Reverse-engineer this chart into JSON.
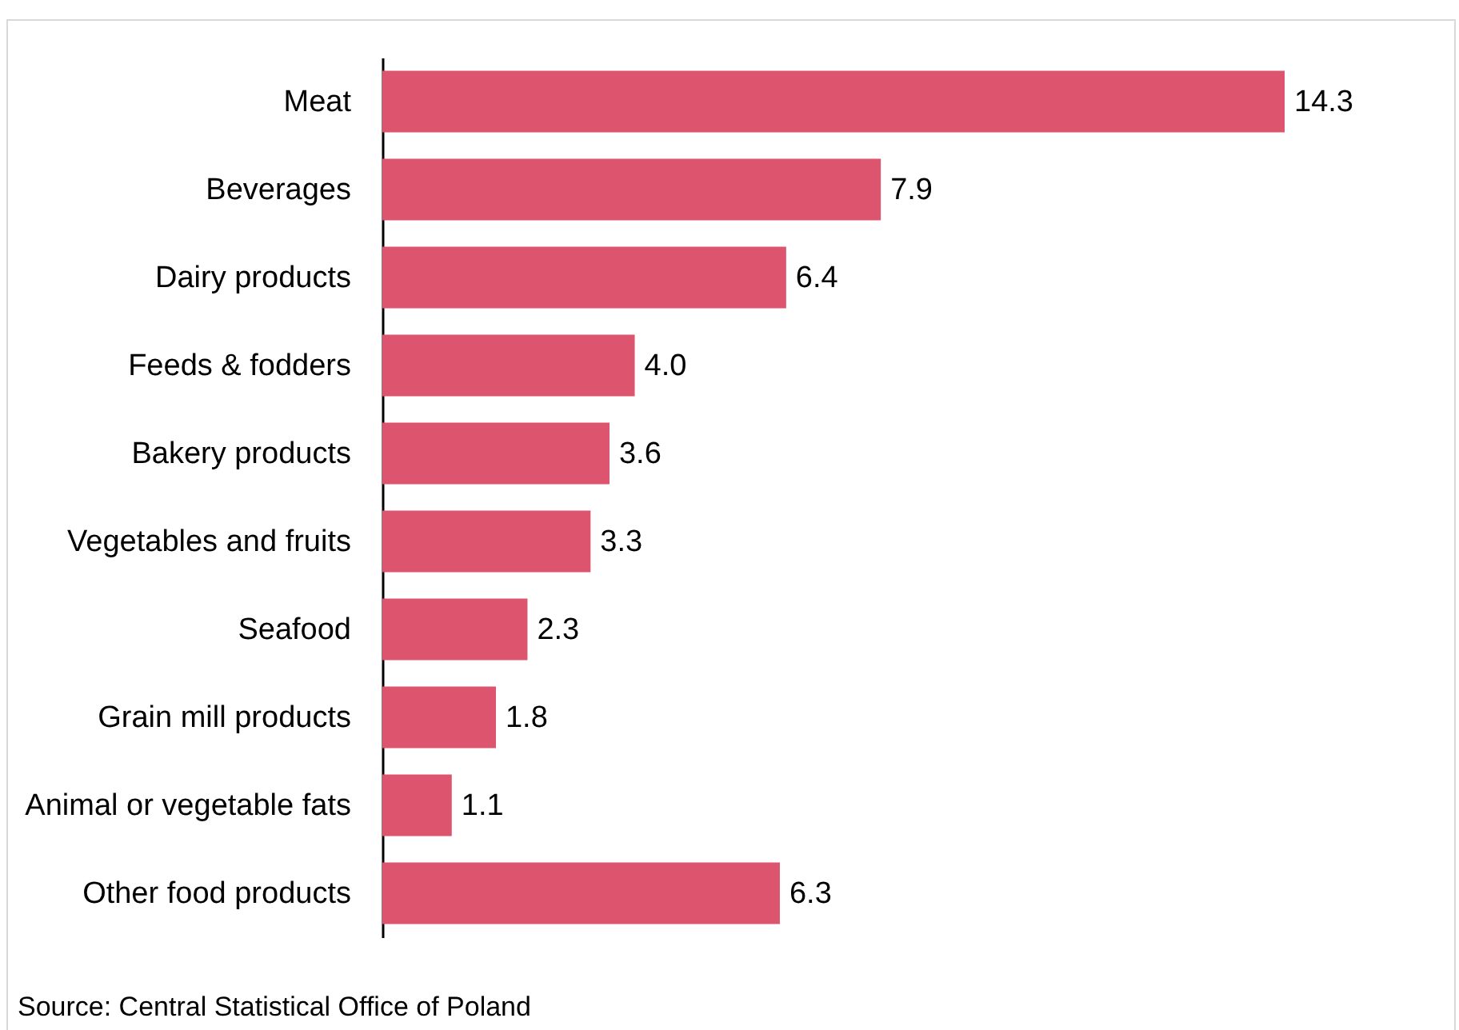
{
  "chart_data": {
    "type": "bar",
    "orientation": "horizontal",
    "categories": [
      "Meat",
      "Beverages",
      "Dairy products",
      "Feeds & fodders",
      "Bakery products",
      "Vegetables and fruits",
      "Seafood",
      "Grain mill products",
      "Animal or vegetable fats",
      "Other food products"
    ],
    "values": [
      14.3,
      7.9,
      6.4,
      4.0,
      3.6,
      3.3,
      2.3,
      1.8,
      1.1,
      6.3
    ],
    "value_labels": [
      "14.3",
      "7.9",
      "6.4",
      "4.0",
      "3.6",
      "3.3",
      "2.3",
      "1.8",
      "1.1",
      "6.3"
    ],
    "color": "#dc546d",
    "grid": false,
    "annotations": [
      "Source: Central Statistical Office of Poland"
    ]
  }
}
